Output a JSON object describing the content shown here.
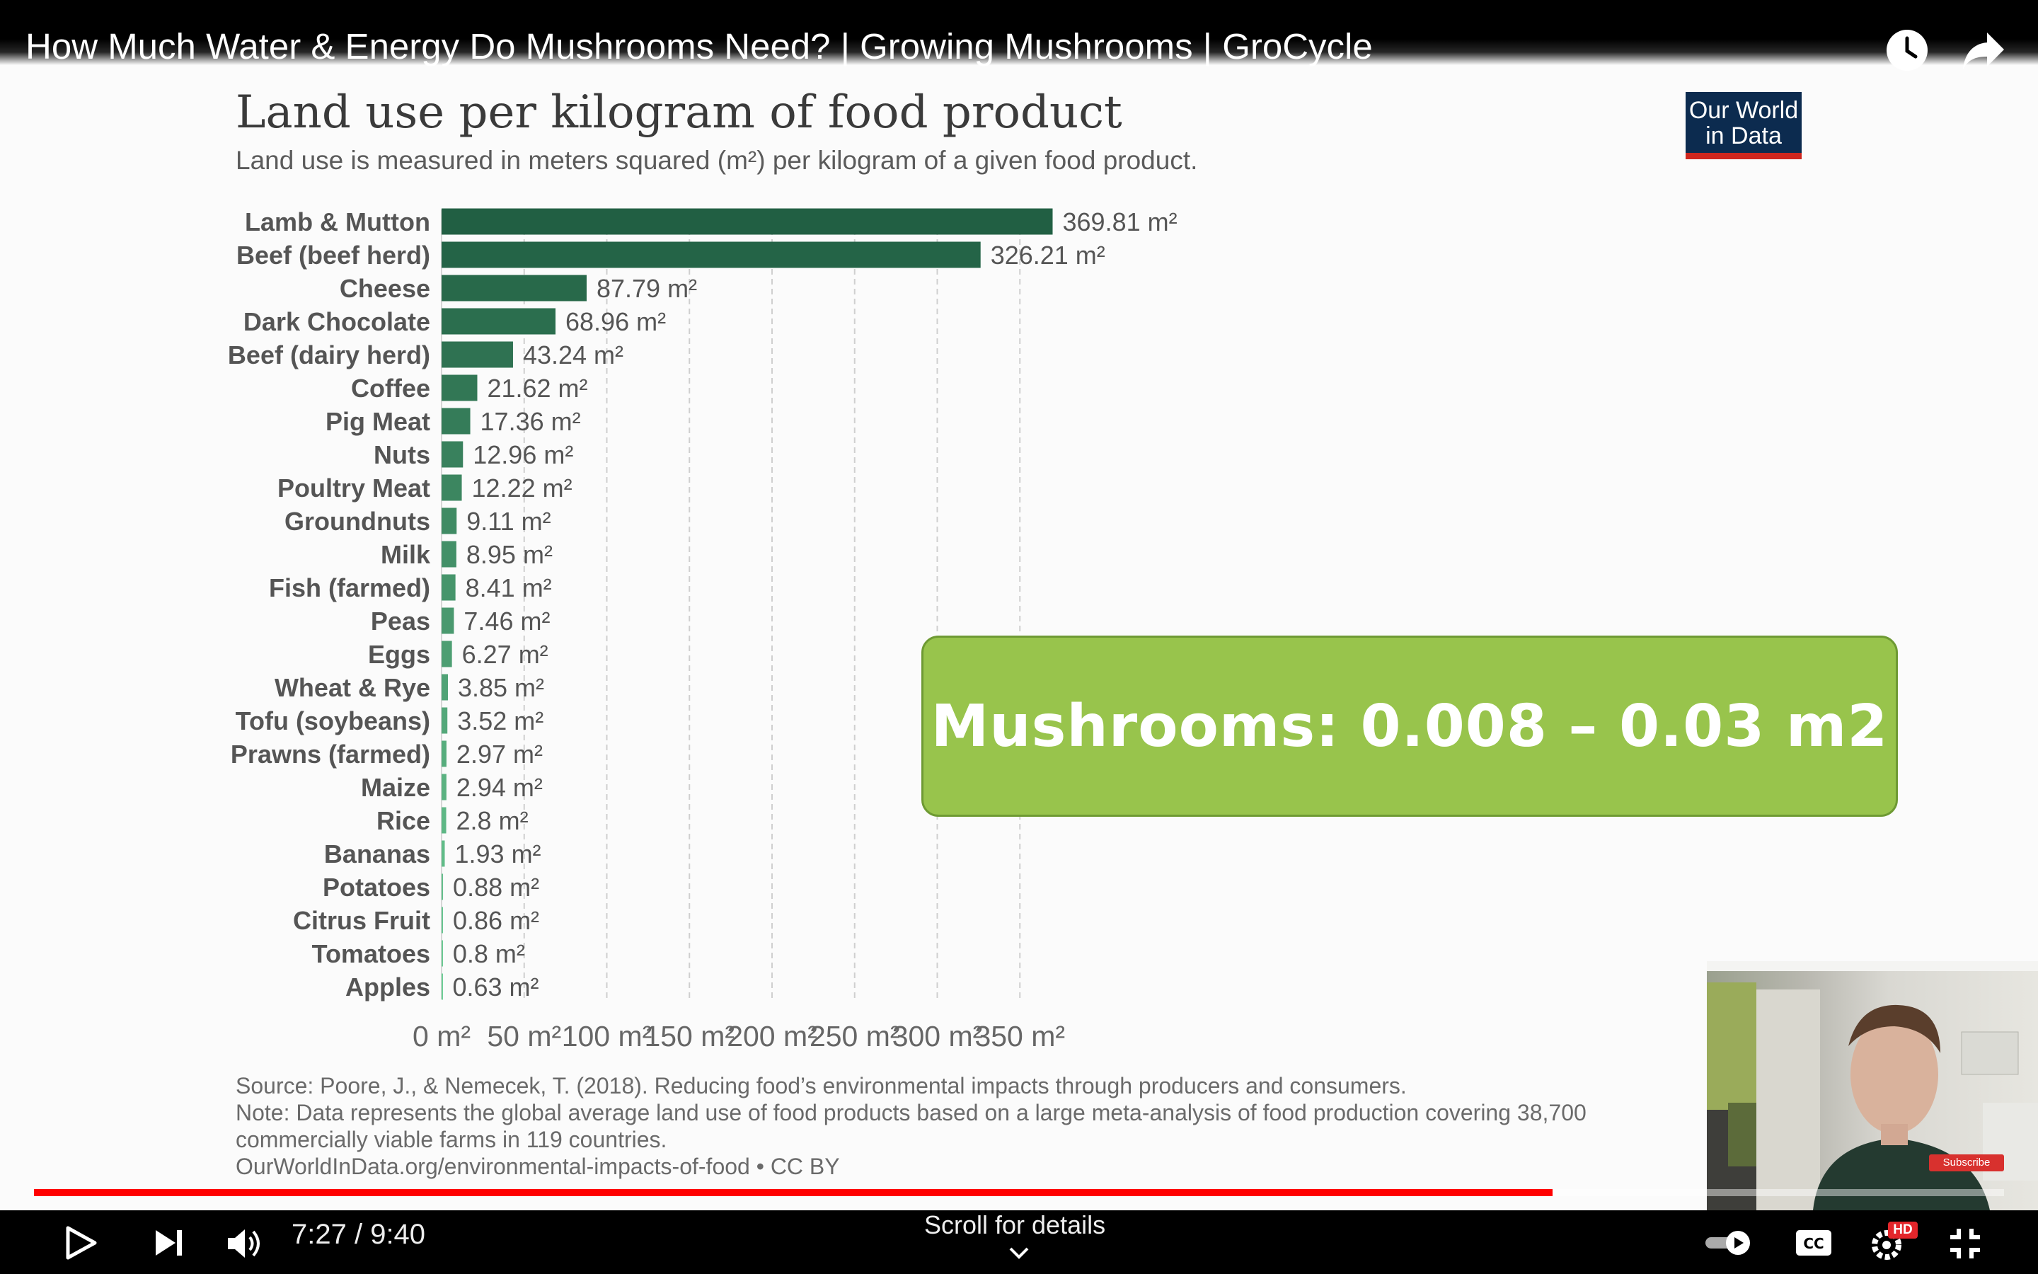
{
  "video": {
    "title": "How Much Water & Energy Do Mushrooms Need? | Growing Mushrooms | GroCycle",
    "time_display": "7:27 / 9:40",
    "progress_fraction": 0.7707,
    "scroll_hint": "Scroll for details",
    "subscribe_label": "Subscribe",
    "hd_badge": "HD"
  },
  "icons": {
    "top": [
      "clock-icon",
      "share-icon"
    ],
    "controls": [
      "play-icon",
      "next-icon",
      "volume-icon",
      "autoplay-toggle-icon",
      "captions-icon",
      "settings-icon",
      "exit-fullscreen-icon"
    ]
  },
  "slide": {
    "logo_line1": "Our World",
    "logo_line2": "in Data",
    "callout": "Mushrooms: 0.008 – 0.03 m2",
    "callout_color": "#98c44c"
  },
  "chart_data": {
    "type": "bar",
    "orientation": "horizontal",
    "title": "Land use per kilogram of food product",
    "subtitle": "Land use is measured in meters squared (m²) per kilogram of a given food product.",
    "categories": [
      "Lamb & Mutton",
      "Beef (beef herd)",
      "Cheese",
      "Dark Chocolate",
      "Beef (dairy herd)",
      "Coffee",
      "Pig Meat",
      "Nuts",
      "Poultry Meat",
      "Groundnuts",
      "Milk",
      "Fish (farmed)",
      "Peas",
      "Eggs",
      "Wheat & Rye",
      "Tofu (soybeans)",
      "Prawns (farmed)",
      "Maize",
      "Rice",
      "Bananas",
      "Potatoes",
      "Citrus Fruit",
      "Tomatoes",
      "Apples"
    ],
    "values": [
      369.81,
      326.21,
      87.79,
      68.96,
      43.24,
      21.62,
      17.36,
      12.96,
      12.22,
      9.11,
      8.95,
      8.41,
      7.46,
      6.27,
      3.85,
      3.52,
      2.97,
      2.94,
      2.8,
      1.93,
      0.88,
      0.86,
      0.8,
      0.63
    ],
    "data_labels": [
      "369.81 m²",
      "326.21 m²",
      "87.79 m²",
      "68.96 m²",
      "43.24 m²",
      "21.62 m²",
      "17.36 m²",
      "12.96 m²",
      "12.22 m²",
      "9.11 m²",
      "8.95 m²",
      "8.41 m²",
      "7.46 m²",
      "6.27 m²",
      "3.85 m²",
      "3.52 m²",
      "2.97 m²",
      "2.94 m²",
      "2.8 m²",
      "1.93 m²",
      "0.88 m²",
      "0.86 m²",
      "0.8 m²",
      "0.63 m²"
    ],
    "unit": "m²",
    "xlim": [
      0,
      370
    ],
    "xticks": [
      0,
      50,
      100,
      150,
      200,
      250,
      300,
      350
    ],
    "xtick_labels": [
      "0 m²",
      "50 m²",
      "100 m²",
      "150 m²",
      "200 m²",
      "250 m²",
      "300 m²",
      "350 m²"
    ],
    "grid": "vertical dashed",
    "colors": {
      "dark": "#215f43",
      "light": "#6fcf97"
    },
    "source": "Source: Poore, J., & Nemecek, T. (2018). Reducing food’s environmental impacts through producers and consumers.",
    "note_line1": "Note: Data represents the global average land use of food products based on a large meta-analysis of food production covering 38,700",
    "note_line2": "commercially viable farms in 119 countries.",
    "credit": "OurWorldInData.org/environmental-impacts-of-food • CC BY"
  }
}
